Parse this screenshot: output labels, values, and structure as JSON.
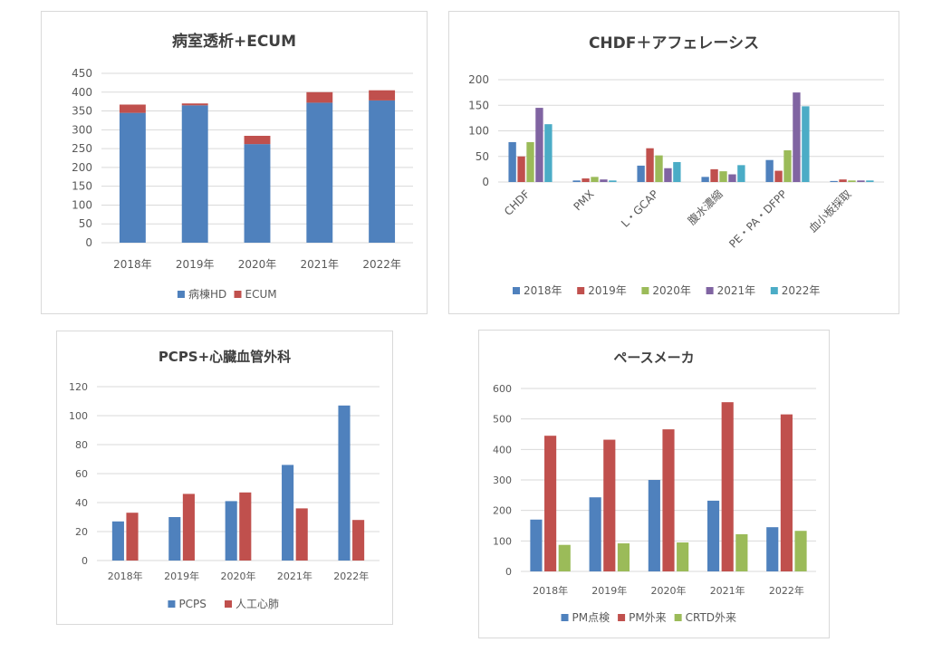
{
  "colors": {
    "blue": "#4f81bd",
    "red": "#c0504d",
    "green": "#9bbb59",
    "purple": "#8064a2",
    "teal": "#4bacc6",
    "grid": "#d9d9d9",
    "text": "#595959",
    "title": "#404040"
  },
  "chart_data": [
    {
      "type": "bar",
      "stacked": true,
      "title": "病室透析+ECUM",
      "categories": [
        "2018年",
        "2019年",
        "2020年",
        "2021年",
        "2022年"
      ],
      "series": [
        {
          "name": "病棟HD",
          "color": "#4f81bd",
          "values": [
            345,
            365,
            262,
            372,
            378
          ]
        },
        {
          "name": "ECUM",
          "color": "#c0504d",
          "values": [
            22,
            5,
            22,
            28,
            27
          ]
        }
      ],
      "ylim": [
        0,
        450
      ],
      "yticks": [
        0,
        50,
        100,
        150,
        200,
        250,
        300,
        350,
        400,
        450
      ],
      "grid": true,
      "legend_position": "bottom"
    },
    {
      "type": "bar",
      "title": "CHDF＋アフェレーシス",
      "categories": [
        "CHDF",
        "PMX",
        "L・GCAP",
        "腹水濃縮",
        "PE・PA・DFPP",
        "血小板採取"
      ],
      "series": [
        {
          "name": "2018年",
          "color": "#4f81bd",
          "values": [
            78,
            3,
            32,
            10,
            43,
            2
          ]
        },
        {
          "name": "2019年",
          "color": "#c0504d",
          "values": [
            50,
            7,
            66,
            25,
            22,
            5
          ]
        },
        {
          "name": "2020年",
          "color": "#9bbb59",
          "values": [
            78,
            10,
            52,
            21,
            62,
            3
          ]
        },
        {
          "name": "2021年",
          "color": "#8064a2",
          "values": [
            145,
            5,
            27,
            15,
            175,
            3
          ]
        },
        {
          "name": "2022年",
          "color": "#4bacc6",
          "values": [
            113,
            3,
            39,
            33,
            148,
            3
          ]
        }
      ],
      "ylim": [
        0,
        200
      ],
      "yticks": [
        0,
        50,
        100,
        150,
        200
      ],
      "grid": true,
      "legend_position": "bottom"
    },
    {
      "type": "bar",
      "title": "PCPS+心臓血管外科",
      "categories": [
        "2018年",
        "2019年",
        "2020年",
        "2021年",
        "2022年"
      ],
      "series": [
        {
          "name": "PCPS",
          "color": "#4f81bd",
          "values": [
            27,
            30,
            41,
            66,
            107
          ]
        },
        {
          "name": "人工心肺",
          "color": "#c0504d",
          "values": [
            33,
            46,
            47,
            36,
            28
          ]
        }
      ],
      "ylim": [
        0,
        120
      ],
      "yticks": [
        0,
        20,
        40,
        60,
        80,
        100,
        120
      ],
      "grid": true,
      "legend_position": "bottom"
    },
    {
      "type": "bar",
      "title": "ペースメーカ",
      "categories": [
        "2018年",
        "2019年",
        "2020年",
        "2021年",
        "2022年"
      ],
      "series": [
        {
          "name": "PM点検",
          "color": "#4f81bd",
          "values": [
            170,
            243,
            300,
            232,
            145
          ]
        },
        {
          "name": "PM外来",
          "color": "#c0504d",
          "values": [
            445,
            432,
            466,
            555,
            515
          ]
        },
        {
          "name": "CRTD外来",
          "color": "#9bbb59",
          "values": [
            87,
            92,
            95,
            122,
            133
          ]
        }
      ],
      "ylim": [
        0,
        600
      ],
      "yticks": [
        0,
        100,
        200,
        300,
        400,
        500,
        600
      ],
      "grid": true,
      "legend_position": "bottom"
    }
  ]
}
